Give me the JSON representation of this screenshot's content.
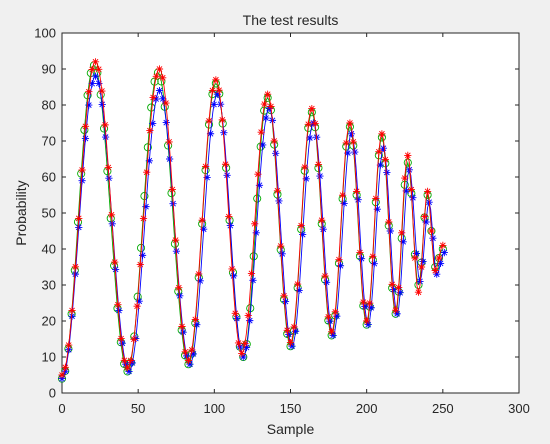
{
  "chart_data": {
    "type": "line",
    "title": "The test results",
    "xlabel": "Sample",
    "ylabel": "Probability",
    "xlim": [
      0,
      300
    ],
    "ylim": [
      0,
      100
    ],
    "xticks": [
      "0",
      "50",
      "100",
      "150",
      "200",
      "250",
      "300"
    ],
    "yticks": [
      "0",
      "10",
      "20",
      "30",
      "40",
      "50",
      "60",
      "70",
      "80",
      "90",
      "100"
    ],
    "grid": false,
    "series": [
      {
        "marker": "o",
        "color": "#00aa00",
        "x": [
          0,
          21,
          43,
          63,
          83,
          101,
          119,
          135,
          150,
          164,
          177,
          189,
          200,
          210,
          219,
          227,
          234,
          240,
          245,
          250
        ],
        "y": [
          4,
          91,
          6,
          89,
          8,
          86,
          10,
          82,
          13,
          78,
          16,
          74,
          19,
          71,
          22,
          64,
          30,
          55,
          35,
          40
        ]
      },
      {
        "marker": "*",
        "color": "#ff0000",
        "x": [
          0,
          22,
          43,
          64,
          83,
          101,
          118,
          135,
          150,
          164,
          177,
          189,
          200,
          210,
          219,
          227,
          234,
          240,
          245,
          250
        ],
        "y": [
          5,
          92,
          7,
          90,
          9,
          87,
          11,
          83,
          14,
          79,
          17,
          75,
          20,
          72,
          23,
          66,
          28,
          56,
          34,
          41
        ]
      },
      {
        "marker": "*",
        "color": "#0000ff",
        "x": [
          0,
          22,
          44,
          64,
          84,
          102,
          119,
          136,
          151,
          165,
          178,
          190,
          201,
          211,
          220,
          228,
          235,
          241,
          246,
          251
        ],
        "y": [
          4,
          88,
          6,
          84,
          8,
          83,
          10,
          79,
          13,
          75,
          16,
          72,
          19,
          68,
          22,
          62,
          31,
          53,
          33,
          39
        ]
      }
    ]
  }
}
